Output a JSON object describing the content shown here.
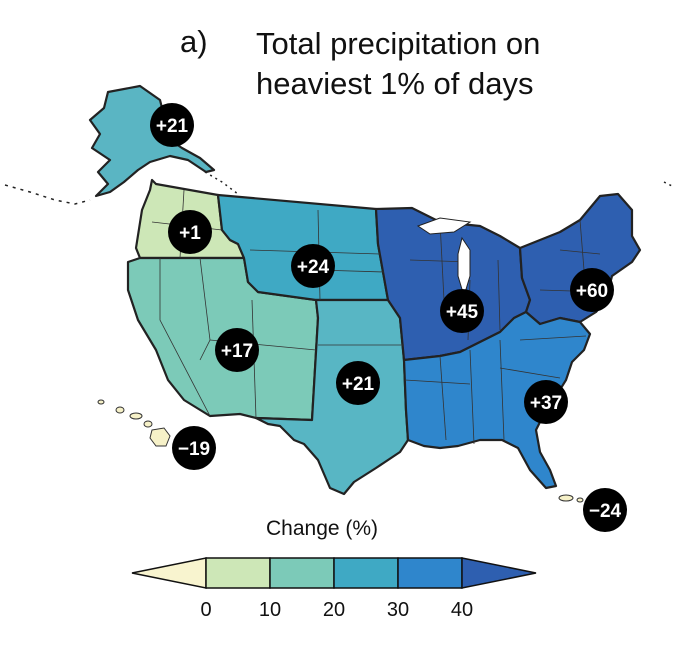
{
  "panel_label": "a)",
  "title_lines": [
    "Total precipitation on",
    "heaviest 1% of days"
  ],
  "regions": [
    {
      "name": "Alaska",
      "change": "+21",
      "color": "#5ab5c3"
    },
    {
      "name": "Northwest",
      "change": "+1",
      "color": "#cde7b7"
    },
    {
      "name": "Great Plains North",
      "change": "+24",
      "color": "#3fa9c4"
    },
    {
      "name": "Southwest",
      "change": "+17",
      "color": "#7ccab8"
    },
    {
      "name": "Great Plains South",
      "change": "+21",
      "color": "#58b6c4"
    },
    {
      "name": "Midwest",
      "change": "+45",
      "color": "#2e5fb0"
    },
    {
      "name": "Northeast",
      "change": "+60",
      "color": "#2e5fb0"
    },
    {
      "name": "Southeast",
      "change": "+37",
      "color": "#2f86cc"
    },
    {
      "name": "Hawaii",
      "change": "−19",
      "color": "#f6f1c8"
    },
    {
      "name": "Caribbean",
      "change": "−24",
      "color": "#f6f1c8"
    }
  ],
  "legend": {
    "title": "Change (%)",
    "ticks": [
      "0",
      "10",
      "20",
      "30",
      "40"
    ],
    "colors": [
      "#f8f4cf",
      "#cde7b7",
      "#7ccab8",
      "#3fa9c4",
      "#2f86cc",
      "#2e5fb0"
    ]
  }
}
